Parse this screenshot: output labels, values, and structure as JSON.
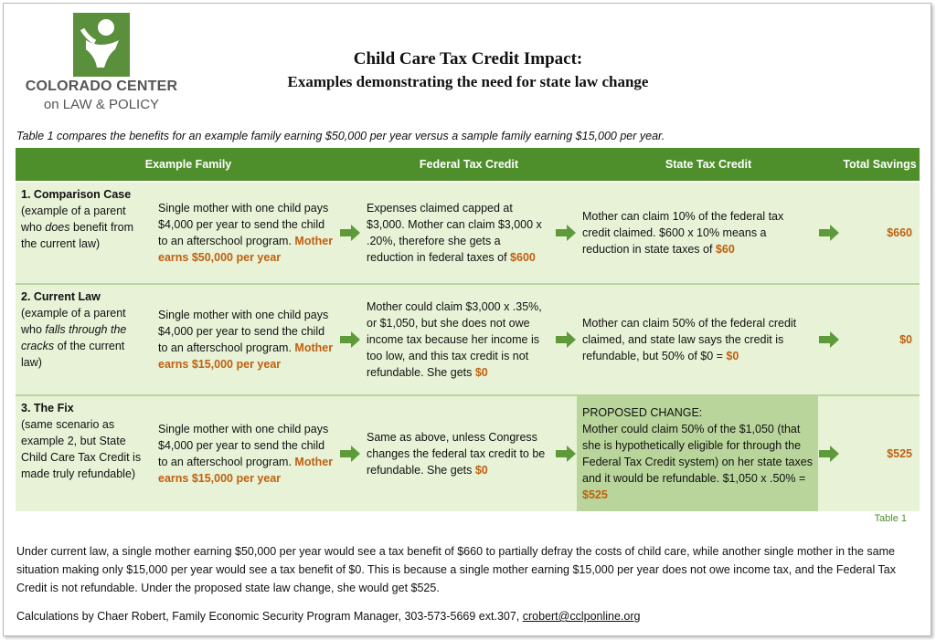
{
  "logo": {
    "line1": "COLORADO CENTER",
    "line2": "on LAW & POLICY",
    "color": "#5a8f3c"
  },
  "title": {
    "line1": "Child Care Tax Credit Impact:",
    "line2": "Examples demonstrating the need for state law change"
  },
  "intro": "Table 1 compares the benefits for an example family earning $50,000 per year versus a sample family earning $15,000 per year.",
  "table": {
    "headers": [
      "Example Family",
      "Federal Tax Credit",
      "State Tax Credit",
      "Total Savings"
    ],
    "rows": [
      {
        "case_title": "1. Comparison Case",
        "case_pre": "(example of a parent who ",
        "case_em": "does",
        "case_post": " benefit from the current law)",
        "family": "Single mother with one child pays $4,000 per year to send the child to an afterschool program.",
        "earns": "Mother earns $50,000 per year",
        "federal": "Expenses claimed capped at $3,000. Mother can claim $3,000 x .20%, therefore she gets a reduction in federal taxes of ",
        "federal_amt": "$600",
        "state_pre": "",
        "state": "Mother can claim 10% of the federal tax credit claimed. $600 x 10% means a reduction in state taxes of ",
        "state_amt": "$60",
        "total": "$660"
      },
      {
        "case_title": "2. Current Law",
        "case_pre": "(example of a parent who ",
        "case_em": "falls through the cracks",
        "case_post": " of the current law)",
        "family": "Single mother with one child pays $4,000 per year to send the child to an afterschool program.",
        "earns": "Mother earns $15,000 per year",
        "federal": "Mother could claim $3,000 x .35%, or $1,050, but she does not owe income tax because her income is too low, and this tax credit is not refundable. She gets ",
        "federal_amt": "$0",
        "state_pre": "",
        "state": "Mother can claim 50% of the federal credit claimed, and state law says the credit is refundable, but 50% of $0 = ",
        "state_amt": "$0",
        "total": "$0"
      },
      {
        "case_title": "3. The Fix",
        "case_pre": "(same scenario as example 2, but State Child Care Tax Credit is made truly refundable)",
        "case_em": "",
        "case_post": "",
        "family": "Single mother with one child pays $4,000 per year to send the child to an afterschool program.",
        "earns": "Mother earns $15,000 per year",
        "federal": "Same as above, unless Congress changes the federal tax credit to be refundable. She gets ",
        "federal_amt": "$0",
        "state_pre": "PROPOSED CHANGE:",
        "state": "Mother could claim 50% of the $1,050 (that she is hypothetically eligible for through the Federal Tax Credit system) on her state taxes and it would be refundable. $1,050 x .50% = ",
        "state_amt": "$525",
        "total": "$525"
      }
    ]
  },
  "table_caption": "Table 1",
  "summary": "Under current law, a single mother earning $50,000 per year would see a tax benefit of $660 to partially defray the costs of child care, while another single mother in the same situation making only $15,000 per year would see a tax benefit of $0. This is because a single mother earning $15,000 per year does not owe income tax, and the Federal Tax Credit is not refundable.  Under the proposed state law change, she would get $525.",
  "calc": {
    "text": "Calculations by Chaer Robert, Family Economic Security Program Manager, 303-573-5669 ext.307, ",
    "email": "crobert@cclponline.org"
  },
  "colors": {
    "header_green": "#4e8f2c",
    "row_bg": "#e8f2d7",
    "proposed_bg": "#b9d59b",
    "accent_orange": "#c0600f",
    "arrow_green": "#5f9a3a"
  }
}
